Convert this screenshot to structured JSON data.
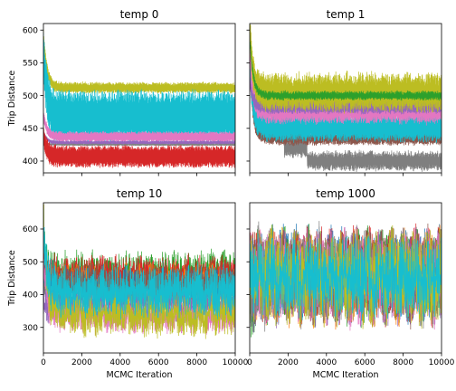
{
  "figure": {
    "ylabel": "Trip Distance",
    "xlabel": "MCMC Iteration"
  },
  "chart_data": [
    {
      "type": "line",
      "title": "temp 0",
      "x_range": [
        0,
        10000
      ],
      "ylim": [
        382,
        610
      ],
      "xticks": [
        0,
        2000,
        4000,
        6000,
        8000,
        10000
      ],
      "xtick_labels": [],
      "yticks": [
        400,
        450,
        500,
        550,
        600
      ],
      "ytick_labels": [
        "400",
        "450",
        "500",
        "550",
        "600"
      ],
      "xlabel": "",
      "ylabel": "Trip Distance",
      "series": [
        {
          "name": "chain-olive",
          "color": "#bcbd22",
          "start": 596,
          "plateau": 512,
          "spread": 8,
          "noise": 1.5,
          "steps": []
        },
        {
          "name": "chain-cyan",
          "color": "#17becf",
          "start": 565,
          "plateau": 468,
          "spread": 40,
          "noise": 2,
          "steps": []
        },
        {
          "name": "chain-pink",
          "color": "#e377c2",
          "start": 470,
          "plateau": 437,
          "spread": 8,
          "noise": 1,
          "steps": []
        },
        {
          "name": "chain-purple",
          "color": "#9467bd",
          "start": 445,
          "plateau": 428,
          "spread": 3,
          "noise": 0.5,
          "steps": []
        },
        {
          "name": "chain-gray",
          "color": "#7f7f7f",
          "start": 430,
          "plateau": 425,
          "spread": 1.5,
          "noise": 0.3,
          "steps": []
        },
        {
          "name": "chain-red",
          "color": "#d62728",
          "start": 440,
          "plateau": 407,
          "spread": 17,
          "noise": 1,
          "steps": []
        }
      ]
    },
    {
      "type": "line",
      "title": "temp 1",
      "x_range": [
        0,
        10000
      ],
      "ylim": [
        382,
        610
      ],
      "xticks": [
        0,
        2000,
        4000,
        6000,
        8000,
        10000
      ],
      "xtick_labels": [],
      "yticks": [
        400,
        450,
        500,
        550,
        600
      ],
      "ytick_labels": [],
      "xlabel": "",
      "ylabel": "",
      "series": [
        {
          "name": "chain-gray",
          "color": "#7f7f7f",
          "start": 560,
          "plateau": 400,
          "spread": 14,
          "noise": 3,
          "steps": [
            [
              0,
              445
            ],
            [
              1800,
              420
            ],
            [
              3000,
              400
            ]
          ]
        },
        {
          "name": "chain-brown",
          "color": "#8c564b",
          "start": 540,
          "plateau": 435,
          "spread": 10,
          "noise": 2,
          "steps": []
        },
        {
          "name": "chain-cyan",
          "color": "#17becf",
          "start": 550,
          "plateau": 452,
          "spread": 22,
          "noise": 3,
          "steps": []
        },
        {
          "name": "chain-pink",
          "color": "#e377c2",
          "start": 565,
          "plateau": 478,
          "spread": 20,
          "noise": 3,
          "steps": []
        },
        {
          "name": "chain-purple",
          "color": "#9467bd",
          "start": 520,
          "plateau": 483,
          "spread": 10,
          "noise": 2,
          "steps": []
        },
        {
          "name": "chain-olive",
          "color": "#bcbd22",
          "start": 596,
          "plateau": 505,
          "spread": 28,
          "noise": 5,
          "steps": []
        },
        {
          "name": "chain-green",
          "color": "#2ca02c",
          "start": 590,
          "plateau": 500,
          "spread": 6,
          "noise": 2,
          "steps": []
        }
      ]
    },
    {
      "type": "line",
      "title": "temp 10",
      "x_range": [
        0,
        10000
      ],
      "ylim": [
        222,
        680
      ],
      "xticks": [
        0,
        2000,
        4000,
        6000,
        8000,
        10000
      ],
      "xtick_labels": [
        "0",
        "2000",
        "4000",
        "6000",
        "8000",
        "10000"
      ],
      "yticks": [
        300,
        400,
        500,
        600
      ],
      "ytick_labels": [
        "300",
        "400",
        "500",
        "600"
      ],
      "xlabel": "MCMC Iteration",
      "ylabel": "Trip Distance",
      "series": [
        {
          "name": "chain-green",
          "color": "#2ca02c",
          "start": 560,
          "plateau": 470,
          "spread": 25,
          "noise": 40,
          "steps": []
        },
        {
          "name": "chain-red",
          "color": "#d62728",
          "start": 520,
          "plateau": 460,
          "spread": 20,
          "noise": 40,
          "steps": []
        },
        {
          "name": "chain-orange",
          "color": "#ff7f0e",
          "start": 500,
          "plateau": 440,
          "spread": 20,
          "noise": 35,
          "steps": []
        },
        {
          "name": "chain-blue",
          "color": "#1f77b4",
          "start": 470,
          "plateau": 430,
          "spread": 20,
          "noise": 35,
          "steps": []
        },
        {
          "name": "chain-brown",
          "color": "#8c564b",
          "start": 480,
          "plateau": 440,
          "spread": 20,
          "noise": 35,
          "steps": []
        },
        {
          "name": "chain-gray",
          "color": "#7f7f7f",
          "start": 420,
          "plateau": 390,
          "spread": 15,
          "noise": 30,
          "steps": []
        },
        {
          "name": "chain-purple",
          "color": "#9467bd",
          "start": 380,
          "plateau": 360,
          "spread": 20,
          "noise": 35,
          "steps": []
        },
        {
          "name": "chain-pink",
          "color": "#e377c2",
          "start": 500,
          "plateau": 330,
          "spread": 20,
          "noise": 30,
          "steps": []
        },
        {
          "name": "chain-olive",
          "color": "#bcbd22",
          "start": 650,
          "plateau": 340,
          "spread": 30,
          "noise": 40,
          "steps": []
        },
        {
          "name": "chain-cyan",
          "color": "#17becf",
          "start": 600,
          "plateau": 410,
          "spread": 45,
          "noise": 40,
          "steps": []
        }
      ]
    },
    {
      "type": "line",
      "title": "temp 1000",
      "x_range": [
        0,
        10000
      ],
      "ylim": [
        222,
        680
      ],
      "xticks": [
        0,
        2000,
        4000,
        6000,
        8000,
        10000
      ],
      "xtick_labels": [
        "0",
        "2000",
        "4000",
        "6000",
        "8000",
        "10000"
      ],
      "yticks": [
        300,
        400,
        500,
        600
      ],
      "ytick_labels": [],
      "xlabel": "MCMC Iteration",
      "ylabel": "",
      "series": [
        {
          "name": "chain-blue",
          "color": "#1f77b4",
          "start": 450,
          "plateau": 460,
          "spread": 60,
          "noise": 90,
          "steps": []
        },
        {
          "name": "chain-orange",
          "color": "#ff7f0e",
          "start": 500,
          "plateau": 450,
          "spread": 60,
          "noise": 90,
          "steps": []
        },
        {
          "name": "chain-green",
          "color": "#2ca02c",
          "start": 420,
          "plateau": 455,
          "spread": 60,
          "noise": 90,
          "steps": []
        },
        {
          "name": "chain-red",
          "color": "#d62728",
          "start": 550,
          "plateau": 460,
          "spread": 60,
          "noise": 90,
          "steps": []
        },
        {
          "name": "chain-purple",
          "color": "#9467bd",
          "start": 400,
          "plateau": 450,
          "spread": 60,
          "noise": 90,
          "steps": []
        },
        {
          "name": "chain-brown",
          "color": "#8c564b",
          "start": 480,
          "plateau": 455,
          "spread": 60,
          "noise": 90,
          "steps": []
        },
        {
          "name": "chain-pink",
          "color": "#e377c2",
          "start": 520,
          "plateau": 450,
          "spread": 60,
          "noise": 90,
          "steps": []
        },
        {
          "name": "chain-gray",
          "color": "#7f7f7f",
          "start": 430,
          "plateau": 455,
          "spread": 60,
          "noise": 90,
          "steps": []
        },
        {
          "name": "chain-olive",
          "color": "#bcbd22",
          "start": 460,
          "plateau": 450,
          "spread": 60,
          "noise": 90,
          "steps": []
        },
        {
          "name": "chain-cyan",
          "color": "#17becf",
          "start": 500,
          "plateau": 450,
          "spread": 45,
          "noise": 80,
          "steps": []
        }
      ]
    }
  ]
}
